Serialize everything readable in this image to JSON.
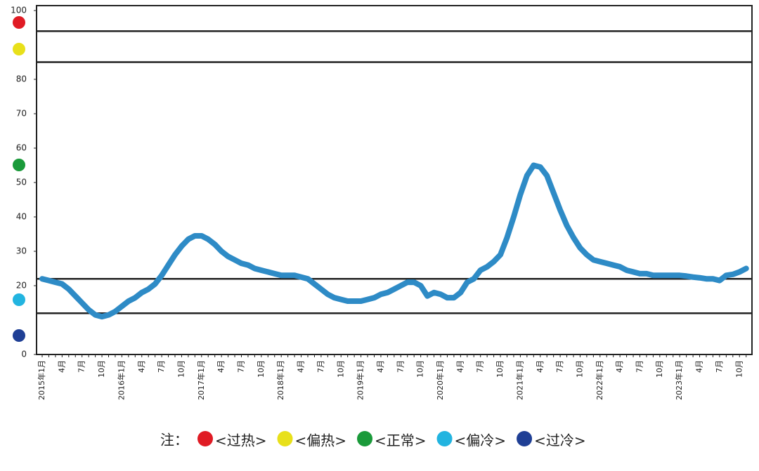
{
  "chart_data": {
    "type": "line",
    "categories": [
      "2015年1月",
      null,
      null,
      "4月",
      null,
      null,
      "7月",
      null,
      null,
      "10月",
      null,
      null,
      "2016年1月",
      null,
      null,
      "4月",
      null,
      null,
      "7月",
      null,
      null,
      "10月",
      null,
      null,
      "2017年1月",
      null,
      null,
      "4月",
      null,
      null,
      "7月",
      null,
      null,
      "10月",
      null,
      null,
      "2018年1月",
      null,
      null,
      "4月",
      null,
      null,
      "7月",
      null,
      null,
      "10月",
      null,
      null,
      "2019年1月",
      null,
      null,
      "4月",
      null,
      null,
      "7月",
      null,
      null,
      "10月",
      null,
      null,
      "2020年1月",
      null,
      null,
      "4月",
      null,
      null,
      "7月",
      null,
      null,
      "10月",
      null,
      null,
      "2021年1月",
      null,
      null,
      "4月",
      null,
      null,
      "7月",
      null,
      null,
      "10月",
      null,
      null,
      "2022年1月",
      null,
      null,
      "4月",
      null,
      null,
      "7月",
      null,
      null,
      "10月",
      null,
      null,
      "2023年1月",
      null,
      null,
      "4月",
      null,
      null,
      "7月",
      null,
      null,
      "10月",
      null
    ],
    "values": [
      22,
      21.5,
      21,
      20.5,
      19,
      17,
      15,
      13,
      11.5,
      11,
      11.5,
      12.5,
      14,
      15.5,
      16.5,
      18,
      19,
      20.5,
      23,
      26,
      29,
      31.5,
      33.5,
      34.5,
      34.5,
      33.5,
      32,
      30,
      28.5,
      27.5,
      26.5,
      26,
      25,
      24.5,
      24,
      23.5,
      23,
      23,
      23,
      22.5,
      22,
      20.5,
      19,
      17.5,
      16.5,
      16,
      15.5,
      15.5,
      15.5,
      16,
      16.5,
      17.5,
      18,
      19,
      20,
      21,
      21,
      20,
      17,
      18,
      17.5,
      16.5,
      16.5,
      18,
      21,
      22,
      24.5,
      25.5,
      27,
      29,
      34,
      40,
      46.5,
      52,
      55,
      54.5,
      52,
      47,
      42,
      37.5,
      34,
      31,
      29,
      27.5,
      27,
      26.5,
      26,
      25.5,
      24.5,
      24,
      23.5,
      23.5,
      23,
      23,
      23,
      23,
      23,
      22.8,
      22.5,
      22.3,
      22,
      22,
      21.5,
      23,
      23.3,
      24,
      25
    ],
    "color": "#2e8bc6",
    "ylim": [
      0,
      100
    ],
    "yticks": [
      0,
      20,
      30,
      40,
      50,
      60,
      70,
      80,
      100
    ],
    "reference_lines": [
      94,
      85,
      22,
      12
    ],
    "legend_title": "注：",
    "legend": [
      {
        "label": "<过热>",
        "color": "#e01b24"
      },
      {
        "label": "<偏热>",
        "color": "#e8e01a"
      },
      {
        "label": "<正常>",
        "color": "#1a9a3a"
      },
      {
        "label": "<偏冷>",
        "color": "#22b4e0"
      },
      {
        "label": "<过冷>",
        "color": "#1f3f95"
      }
    ]
  }
}
